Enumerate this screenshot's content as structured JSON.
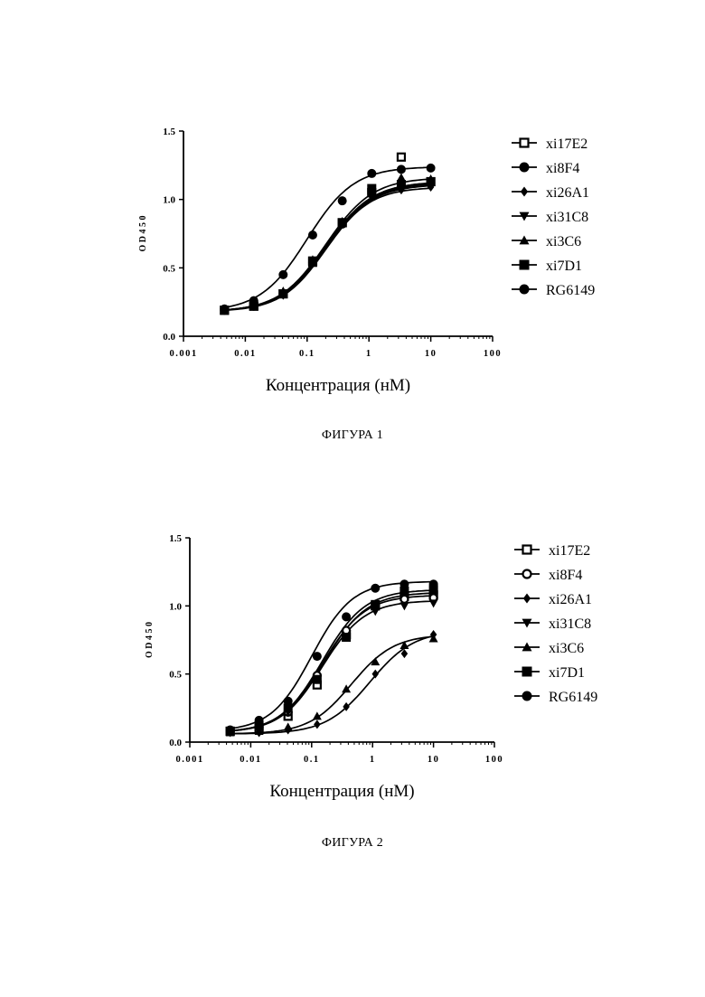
{
  "figures": [
    {
      "caption": "ФИГУРА 1",
      "chart_data": {
        "type": "scatter",
        "title": "",
        "xlabel": "Концентрация (нМ)",
        "ylabel": "O D 4 5 0",
        "xscale": "log",
        "xlim": [
          0.001,
          100
        ],
        "ylim": [
          0.0,
          1.5
        ],
        "xticks": [
          0.001,
          0.01,
          0.1,
          1,
          10,
          100
        ],
        "xtick_labels": [
          "0.001",
          "0.01",
          "0.1",
          "1",
          "10",
          "100"
        ],
        "yticks": [
          0.0,
          0.5,
          1.0,
          1.5
        ],
        "ytick_labels": [
          "0.0",
          "0.5",
          "1.0",
          "1.5"
        ],
        "legend_position": "right",
        "x": [
          0.0046,
          0.0137,
          0.041,
          0.123,
          0.37,
          1.11,
          3.33,
          10
        ],
        "series": [
          {
            "name": "xi17E2",
            "marker": "square-open",
            "values": [
              0.19,
              0.22,
              0.31,
              0.55,
              0.83,
              1.05,
              1.31,
              1.13
            ],
            "fit": {
              "bottom": 0.18,
              "top": 1.13,
              "ec50": 0.2,
              "hill": 1.15
            }
          },
          {
            "name": "xi8F4",
            "marker": "circle-filled",
            "values": [
              0.19,
              0.22,
              0.31,
              0.54,
              0.82,
              1.04,
              1.12,
              1.12
            ],
            "fit": {
              "bottom": 0.18,
              "top": 1.12,
              "ec50": 0.2,
              "hill": 1.15
            }
          },
          {
            "name": "xi26A1",
            "marker": "diamond-filled",
            "values": [
              0.19,
              0.22,
              0.3,
              0.53,
              0.82,
              1.02,
              1.07,
              1.09
            ],
            "fit": {
              "bottom": 0.18,
              "top": 1.09,
              "ec50": 0.2,
              "hill": 1.2
            }
          },
          {
            "name": "xi31C8",
            "marker": "triangle-down-filled",
            "values": [
              0.19,
              0.22,
              0.31,
              0.54,
              0.82,
              1.03,
              1.1,
              1.11
            ],
            "fit": {
              "bottom": 0.18,
              "top": 1.11,
              "ec50": 0.2,
              "hill": 1.15
            }
          },
          {
            "name": "xi3C6",
            "marker": "triangle-up-filled",
            "values": [
              0.19,
              0.22,
              0.33,
              0.56,
              0.84,
              1.06,
              1.16,
              1.15
            ],
            "fit": {
              "bottom": 0.18,
              "top": 1.16,
              "ec50": 0.2,
              "hill": 1.15
            }
          },
          {
            "name": "xi7D1",
            "marker": "square-filled",
            "values": [
              0.19,
              0.22,
              0.31,
              0.54,
              0.83,
              1.08,
              1.11,
              1.13
            ],
            "fit": {
              "bottom": 0.18,
              "top": 1.13,
              "ec50": 0.2,
              "hill": 1.15
            }
          },
          {
            "name": "RG6149",
            "marker": "circle-filled",
            "values": [
              0.2,
              0.26,
              0.45,
              0.74,
              0.99,
              1.19,
              1.22,
              1.23
            ],
            "fit": {
              "bottom": 0.18,
              "top": 1.24,
              "ec50": 0.1,
              "hill": 1.15
            }
          }
        ]
      }
    },
    {
      "caption": "ФИГУРА 2",
      "chart_data": {
        "type": "scatter",
        "title": "",
        "xlabel": "Концентрация (нМ)",
        "ylabel": "O D 4 5 0",
        "xscale": "log",
        "xlim": [
          0.001,
          100
        ],
        "ylim": [
          0.0,
          1.5
        ],
        "xticks": [
          0.001,
          0.01,
          0.1,
          1,
          10,
          100
        ],
        "xtick_labels": [
          "0.001",
          "0.01",
          "0.1",
          "1",
          "10",
          "100"
        ],
        "yticks": [
          0.0,
          0.5,
          1.0,
          1.5
        ],
        "ytick_labels": [
          "0.0",
          "0.5",
          "1.0",
          "1.5"
        ],
        "legend_position": "right",
        "x": [
          0.0046,
          0.0137,
          0.041,
          0.123,
          0.37,
          1.11,
          3.33,
          10
        ],
        "series": [
          {
            "name": "xi17E2",
            "marker": "square-open",
            "values": [
              0.08,
              0.1,
              0.19,
              0.42,
              0.79,
              1.0,
              1.07,
              1.08
            ],
            "fit": {
              "bottom": 0.07,
              "top": 1.1,
              "ec50": 0.16,
              "hill": 1.25
            }
          },
          {
            "name": "xi8F4",
            "marker": "circle-open",
            "values": [
              0.08,
              0.11,
              0.22,
              0.49,
              0.82,
              1.0,
              1.05,
              1.06
            ],
            "fit": {
              "bottom": 0.07,
              "top": 1.08,
              "ec50": 0.15,
              "hill": 1.25
            }
          },
          {
            "name": "xi26A1",
            "marker": "diamond-filled",
            "values": [
              0.07,
              0.07,
              0.09,
              0.13,
              0.26,
              0.5,
              0.65,
              0.79
            ],
            "fit": {
              "bottom": 0.06,
              "top": 0.82,
              "ec50": 0.9,
              "hill": 1.2
            }
          },
          {
            "name": "xi31C8",
            "marker": "triangle-down-filled",
            "values": [
              0.08,
              0.1,
              0.22,
              0.46,
              0.77,
              0.96,
              1.0,
              1.02
            ],
            "fit": {
              "bottom": 0.07,
              "top": 1.04,
              "ec50": 0.15,
              "hill": 1.25
            }
          },
          {
            "name": "xi3C6",
            "marker": "triangle-up-filled",
            "values": [
              0.07,
              0.08,
              0.11,
              0.19,
              0.39,
              0.59,
              0.71,
              0.76
            ],
            "fit": {
              "bottom": 0.06,
              "top": 0.79,
              "ec50": 0.45,
              "hill": 1.25
            }
          },
          {
            "name": "xi7D1",
            "marker": "square-filled",
            "values": [
              0.08,
              0.12,
              0.25,
              0.46,
              0.77,
              1.01,
              1.11,
              1.12
            ],
            "fit": {
              "bottom": 0.07,
              "top": 1.12,
              "ec50": 0.15,
              "hill": 1.25
            }
          },
          {
            "name": "RG6149",
            "marker": "circle-filled",
            "values": [
              0.09,
              0.16,
              0.3,
              0.63,
              0.92,
              1.13,
              1.16,
              1.16
            ],
            "fit": {
              "bottom": 0.08,
              "top": 1.18,
              "ec50": 0.1,
              "hill": 1.3
            }
          }
        ]
      }
    }
  ]
}
